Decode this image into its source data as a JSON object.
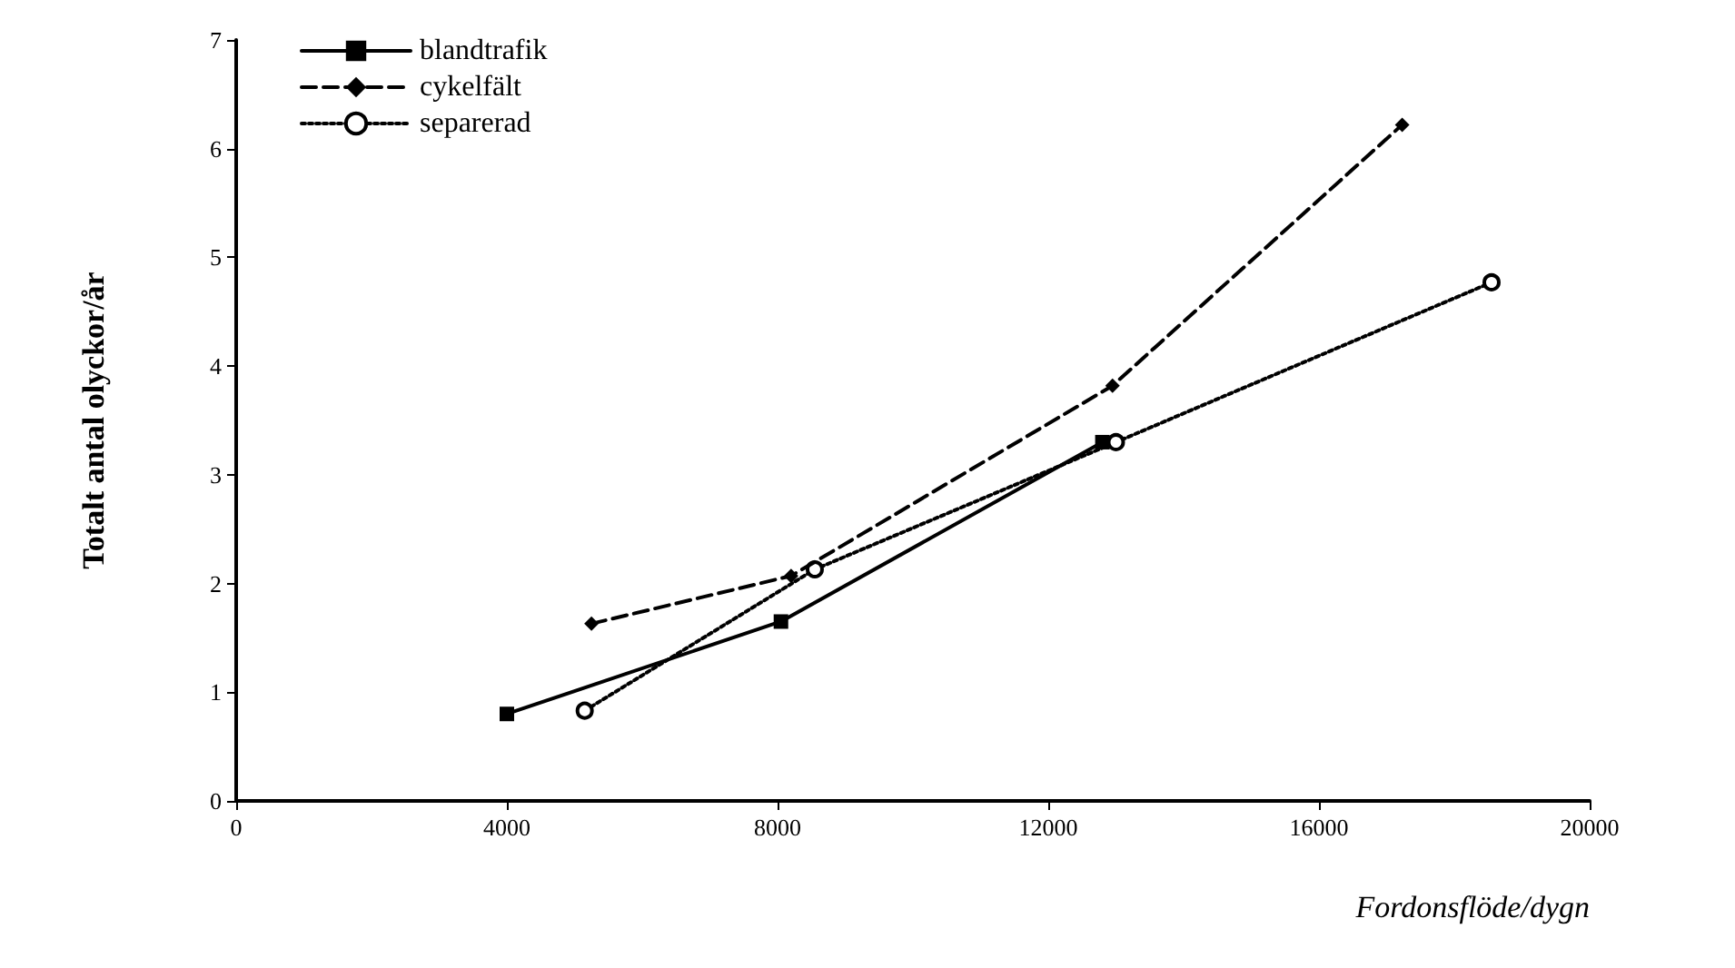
{
  "chart_data": {
    "type": "line",
    "xlabel": "Fordonsflöde/dygn",
    "ylabel": "Totalt antal olyckor/år",
    "xlim": [
      0,
      20000
    ],
    "xticks": [
      0,
      4000,
      8000,
      12000,
      16000,
      20000
    ],
    "ylim": [
      0,
      7
    ],
    "yticks": [
      0,
      1,
      2,
      3,
      4,
      5,
      6,
      7
    ],
    "grid": false,
    "legend": "top left",
    "series": [
      {
        "name": "blandtrafik",
        "color": "#000000",
        "line_style": "solid",
        "marker": "square",
        "x": [
          4000,
          8050,
          12800
        ],
        "values": [
          0.8,
          1.65,
          3.3
        ]
      },
      {
        "name": "cykelfält",
        "color": "#000000",
        "line_style": "dashed",
        "marker": "diamond",
        "x": [
          5250,
          8200,
          12950,
          17230
        ],
        "values": [
          1.63,
          2.07,
          3.82,
          6.22
        ]
      },
      {
        "name": "separerad",
        "color": "#000000",
        "line_style": "dotted",
        "marker": "circle",
        "x": [
          5150,
          8550,
          13000,
          18550
        ],
        "values": [
          0.83,
          2.13,
          3.3,
          4.77
        ]
      }
    ]
  }
}
